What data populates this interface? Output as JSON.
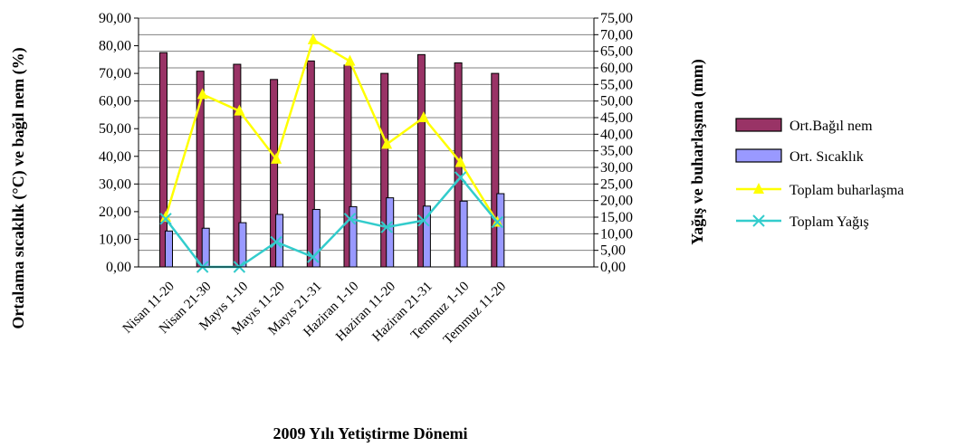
{
  "chart_data": {
    "type": "bar",
    "xlabel": "2009 Yılı Yetiştirme Dönemi",
    "ylabel_left": "Ortalama sıcaklık (°C) ve bağıl nem (%)",
    "ylabel_right": "Yağış ve buharlaşma (mm)",
    "categories": [
      "Nisan 11-20",
      "Nisan 21-30",
      "Mayıs 1-10",
      "Mayıs 11-20",
      "Mayıs 21-31",
      "Haziran 1-10",
      "Haziran 11-20",
      "Haziran 21-31",
      "Temmuz 1-10",
      "Temmuz 11-20"
    ],
    "left_axis": {
      "ylim": [
        0,
        90
      ],
      "ticks": [
        "0,00",
        "10,00",
        "20,00",
        "30,00",
        "40,00",
        "50,00",
        "60,00",
        "70,00",
        "80,00",
        "90,00"
      ]
    },
    "right_axis": {
      "ylim": [
        0,
        75
      ],
      "ticks": [
        "0,00",
        "5,00",
        "10,00",
        "15,00",
        "20,00",
        "25,00",
        "30,00",
        "35,00",
        "40,00",
        "45,00",
        "50,00",
        "55,00",
        "60,00",
        "65,00",
        "70,00",
        "75,00"
      ]
    },
    "series": [
      {
        "name": "Ort.Bağıl nem",
        "kind": "bar",
        "axis": "left",
        "color": "#993366",
        "values": [
          77.5,
          70.8,
          73.3,
          67.8,
          74.5,
          73.0,
          70.0,
          76.8,
          73.8,
          70.0
        ]
      },
      {
        "name": "Ort. Sıcaklık",
        "kind": "bar",
        "axis": "left",
        "color": "#9999ff",
        "values": [
          13.0,
          14.0,
          16.0,
          19.0,
          20.8,
          21.8,
          25.0,
          22.0,
          23.8,
          26.5
        ]
      },
      {
        "name": "Toplam buharlaşma",
        "kind": "line",
        "axis": "right",
        "color": "#ffff00",
        "marker": "triangle",
        "values": [
          15.0,
          52.0,
          47.0,
          32.5,
          68.5,
          62.0,
          37.0,
          45.0,
          31.5,
          13.5
        ]
      },
      {
        "name": "Toplam Yağış",
        "kind": "line",
        "axis": "right",
        "color": "#33cccc",
        "marker": "x",
        "values": [
          14.5,
          0.0,
          0.0,
          7.5,
          3.0,
          14.5,
          12.0,
          14.0,
          27.0,
          13.5
        ]
      }
    ],
    "grid": true,
    "legend_position": "right"
  }
}
